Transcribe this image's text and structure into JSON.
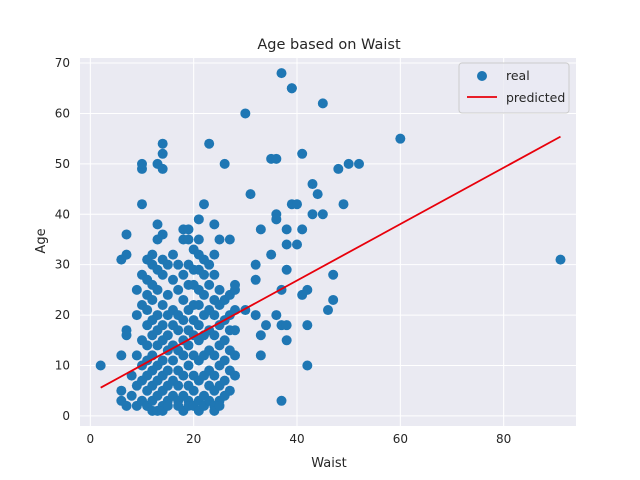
{
  "chart_data": {
    "type": "scatter",
    "title": "Age based on Waist",
    "xlabel": "Waist",
    "ylabel": "Age",
    "xlim": [
      -2,
      94
    ],
    "ylim": [
      -2,
      71
    ],
    "xticks": [
      0,
      20,
      40,
      60,
      80
    ],
    "yticks": [
      0,
      10,
      20,
      30,
      40,
      50,
      60,
      70
    ],
    "grid": true,
    "legend_position": "top-right",
    "colors": {
      "real": "#1f77b4",
      "predicted": "#e8000b",
      "plot_bg": "#eaeaf2",
      "grid": "#ffffff"
    },
    "series": [
      {
        "name": "real",
        "kind": "scatter",
        "points": [
          [
            2,
            10
          ],
          [
            6,
            12
          ],
          [
            6,
            31
          ],
          [
            7,
            32
          ],
          [
            7,
            36
          ],
          [
            7,
            16
          ],
          [
            7,
            17
          ],
          [
            6,
            5
          ],
          [
            6,
            3
          ],
          [
            7,
            2
          ],
          [
            8,
            8
          ],
          [
            8,
            4
          ],
          [
            9,
            2
          ],
          [
            9,
            6
          ],
          [
            9,
            12
          ],
          [
            9,
            20
          ],
          [
            9,
            25
          ],
          [
            10,
            28
          ],
          [
            10,
            22
          ],
          [
            10,
            15
          ],
          [
            10,
            10
          ],
          [
            10,
            7
          ],
          [
            10,
            3
          ],
          [
            10,
            42
          ],
          [
            10,
            49
          ],
          [
            10,
            50
          ],
          [
            11,
            2
          ],
          [
            11,
            5
          ],
          [
            11,
            8
          ],
          [
            11,
            11
          ],
          [
            11,
            14
          ],
          [
            11,
            18
          ],
          [
            11,
            21
          ],
          [
            11,
            24
          ],
          [
            11,
            27
          ],
          [
            11,
            31
          ],
          [
            11,
            2
          ],
          [
            12,
            3
          ],
          [
            12,
            6
          ],
          [
            12,
            9
          ],
          [
            12,
            12
          ],
          [
            12,
            16
          ],
          [
            12,
            19
          ],
          [
            12,
            23
          ],
          [
            12,
            26
          ],
          [
            12,
            30
          ],
          [
            12,
            32
          ],
          [
            12,
            1
          ],
          [
            13,
            4
          ],
          [
            13,
            7
          ],
          [
            13,
            10
          ],
          [
            13,
            14
          ],
          [
            13,
            17
          ],
          [
            13,
            20
          ],
          [
            13,
            25
          ],
          [
            13,
            29
          ],
          [
            13,
            35
          ],
          [
            13,
            38
          ],
          [
            13,
            50
          ],
          [
            13,
            1
          ],
          [
            14,
            2
          ],
          [
            14,
            5
          ],
          [
            14,
            8
          ],
          [
            14,
            11
          ],
          [
            14,
            15
          ],
          [
            14,
            18
          ],
          [
            14,
            22
          ],
          [
            14,
            28
          ],
          [
            14,
            31
          ],
          [
            14,
            36
          ],
          [
            14,
            49
          ],
          [
            14,
            52
          ],
          [
            14,
            54
          ],
          [
            14,
            1
          ],
          [
            15,
            3
          ],
          [
            15,
            6
          ],
          [
            15,
            9
          ],
          [
            15,
            13
          ],
          [
            15,
            16
          ],
          [
            15,
            20
          ],
          [
            15,
            24
          ],
          [
            15,
            30
          ],
          [
            15,
            2
          ],
          [
            16,
            4
          ],
          [
            16,
            7
          ],
          [
            16,
            11
          ],
          [
            16,
            14
          ],
          [
            16,
            18
          ],
          [
            16,
            21
          ],
          [
            16,
            27
          ],
          [
            16,
            32
          ],
          [
            17,
            3
          ],
          [
            17,
            6
          ],
          [
            17,
            9
          ],
          [
            17,
            13
          ],
          [
            17,
            17
          ],
          [
            17,
            20
          ],
          [
            17,
            25
          ],
          [
            17,
            30
          ],
          [
            17,
            2
          ],
          [
            18,
            4
          ],
          [
            18,
            8
          ],
          [
            18,
            12
          ],
          [
            18,
            15
          ],
          [
            18,
            19
          ],
          [
            18,
            23
          ],
          [
            18,
            28
          ],
          [
            18,
            35
          ],
          [
            18,
            37
          ],
          [
            18,
            1
          ],
          [
            19,
            3
          ],
          [
            19,
            6
          ],
          [
            19,
            10
          ],
          [
            19,
            14
          ],
          [
            19,
            17
          ],
          [
            19,
            21
          ],
          [
            19,
            26
          ],
          [
            19,
            30
          ],
          [
            19,
            35
          ],
          [
            19,
            37
          ],
          [
            19,
            2
          ],
          [
            20,
            5
          ],
          [
            20,
            8
          ],
          [
            20,
            12
          ],
          [
            20,
            16
          ],
          [
            20,
            19
          ],
          [
            20,
            22
          ],
          [
            20,
            26
          ],
          [
            20,
            29
          ],
          [
            20,
            33
          ],
          [
            20,
            2
          ],
          [
            21,
            3
          ],
          [
            21,
            7
          ],
          [
            21,
            11
          ],
          [
            21,
            15
          ],
          [
            21,
            18
          ],
          [
            21,
            22
          ],
          [
            21,
            25
          ],
          [
            21,
            29
          ],
          [
            21,
            32
          ],
          [
            21,
            35
          ],
          [
            21,
            39
          ],
          [
            21,
            1
          ],
          [
            22,
            4
          ],
          [
            22,
            8
          ],
          [
            22,
            12
          ],
          [
            22,
            16
          ],
          [
            22,
            20
          ],
          [
            22,
            24
          ],
          [
            22,
            28
          ],
          [
            22,
            31
          ],
          [
            22,
            42
          ],
          [
            22,
            2
          ],
          [
            23,
            3
          ],
          [
            23,
            6
          ],
          [
            23,
            9
          ],
          [
            23,
            13
          ],
          [
            23,
            17
          ],
          [
            23,
            21
          ],
          [
            23,
            26
          ],
          [
            23,
            30
          ],
          [
            23,
            54
          ],
          [
            24,
            2
          ],
          [
            24,
            5
          ],
          [
            24,
            8
          ],
          [
            24,
            12
          ],
          [
            24,
            16
          ],
          [
            24,
            20
          ],
          [
            24,
            23
          ],
          [
            24,
            28
          ],
          [
            24,
            32
          ],
          [
            24,
            38
          ],
          [
            24,
            1
          ],
          [
            25,
            3
          ],
          [
            25,
            6
          ],
          [
            25,
            10
          ],
          [
            25,
            14
          ],
          [
            25,
            18
          ],
          [
            25,
            22
          ],
          [
            25,
            25
          ],
          [
            25,
            35
          ],
          [
            25,
            2
          ],
          [
            26,
            4
          ],
          [
            26,
            7
          ],
          [
            26,
            11
          ],
          [
            26,
            15
          ],
          [
            26,
            19
          ],
          [
            26,
            23
          ],
          [
            26,
            50
          ],
          [
            27,
            5
          ],
          [
            27,
            9
          ],
          [
            27,
            13
          ],
          [
            27,
            17
          ],
          [
            27,
            20
          ],
          [
            27,
            24
          ],
          [
            27,
            35
          ],
          [
            28,
            12
          ],
          [
            28,
            17
          ],
          [
            28,
            21
          ],
          [
            28,
            26
          ],
          [
            28,
            8
          ],
          [
            28,
            25
          ],
          [
            30,
            60
          ],
          [
            30,
            21
          ],
          [
            31,
            44
          ],
          [
            32,
            30
          ],
          [
            32,
            27
          ],
          [
            32,
            20
          ],
          [
            33,
            37
          ],
          [
            33,
            12
          ],
          [
            33,
            16
          ],
          [
            34,
            18
          ],
          [
            35,
            51
          ],
          [
            35,
            32
          ],
          [
            36,
            51
          ],
          [
            36,
            40
          ],
          [
            36,
            39
          ],
          [
            36,
            20
          ],
          [
            37,
            18
          ],
          [
            37,
            3
          ],
          [
            37,
            25
          ],
          [
            37,
            68
          ],
          [
            38,
            29
          ],
          [
            38,
            34
          ],
          [
            38,
            18
          ],
          [
            38,
            15
          ],
          [
            38,
            37
          ],
          [
            39,
            65
          ],
          [
            39,
            65
          ],
          [
            39,
            42
          ],
          [
            40,
            34
          ],
          [
            40,
            42
          ],
          [
            41,
            52
          ],
          [
            41,
            24
          ],
          [
            41,
            37
          ],
          [
            42,
            10
          ],
          [
            42,
            18
          ],
          [
            42,
            25
          ],
          [
            43,
            46
          ],
          [
            43,
            40
          ],
          [
            44,
            44
          ],
          [
            45,
            62
          ],
          [
            45,
            40
          ],
          [
            46,
            21
          ],
          [
            47,
            28
          ],
          [
            47,
            23
          ],
          [
            48,
            49
          ],
          [
            49,
            42
          ],
          [
            50,
            50
          ],
          [
            52,
            50
          ],
          [
            60,
            55
          ],
          [
            91,
            31
          ]
        ]
      },
      {
        "name": "predicted",
        "kind": "line",
        "points": [
          [
            2,
            5.6
          ],
          [
            91,
            55.4
          ]
        ]
      }
    ]
  }
}
